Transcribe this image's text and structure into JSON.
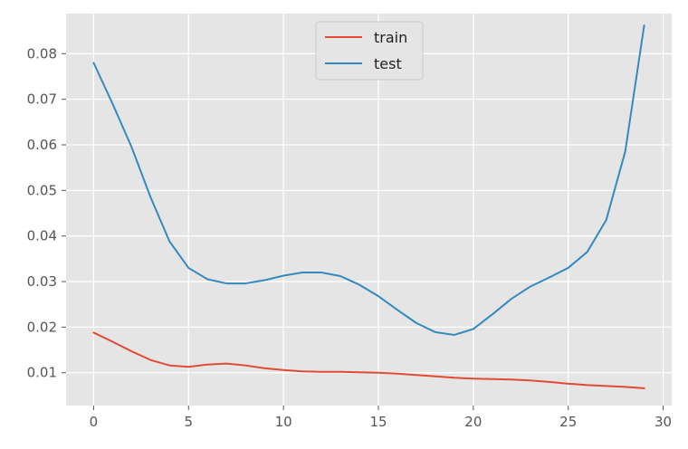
{
  "chart_data": {
    "type": "line",
    "title": "",
    "xlabel": "",
    "ylabel": "",
    "xlim": [
      -1.45,
      30.45
    ],
    "ylim": [
      0.0028,
      0.0888
    ],
    "xticks": [
      0,
      5,
      10,
      15,
      20,
      25,
      30
    ],
    "yticks": [
      0.01,
      0.02,
      0.03,
      0.04,
      0.05,
      0.06,
      0.07,
      0.08
    ],
    "xtick_labels": [
      "0",
      "5",
      "10",
      "15",
      "20",
      "25",
      "30"
    ],
    "ytick_labels": [
      "0.01",
      "0.02",
      "0.03",
      "0.04",
      "0.05",
      "0.06",
      "0.07",
      "0.08"
    ],
    "grid": true,
    "legend_position": "upper center",
    "x": [
      0,
      1,
      2,
      3,
      4,
      5,
      6,
      7,
      8,
      9,
      10,
      11,
      12,
      13,
      14,
      15,
      16,
      17,
      18,
      19,
      20,
      21,
      22,
      23,
      24,
      25,
      26,
      27,
      28,
      29
    ],
    "series": [
      {
        "name": "train",
        "color": "#E24A33",
        "values": [
          0.0188,
          0.0168,
          0.0147,
          0.0128,
          0.0116,
          0.0113,
          0.0118,
          0.012,
          0.0116,
          0.011,
          0.0106,
          0.0103,
          0.0102,
          0.0102,
          0.0101,
          0.01,
          0.0098,
          0.0095,
          0.0092,
          0.0089,
          0.0087,
          0.0086,
          0.0085,
          0.0083,
          0.008,
          0.0076,
          0.0073,
          0.0071,
          0.0069,
          0.0066
        ]
      },
      {
        "name": "test",
        "color": "#348ABD",
        "values": [
          0.078,
          0.069,
          0.0595,
          0.0485,
          0.0388,
          0.033,
          0.0305,
          0.0296,
          0.0296,
          0.0303,
          0.0313,
          0.032,
          0.032,
          0.0312,
          0.0293,
          0.0268,
          0.0238,
          0.0209,
          0.0189,
          0.0183,
          0.0196,
          0.0228,
          0.0262,
          0.0289,
          0.0309,
          0.033,
          0.0365,
          0.0435,
          0.0585,
          0.0862
        ]
      }
    ]
  }
}
